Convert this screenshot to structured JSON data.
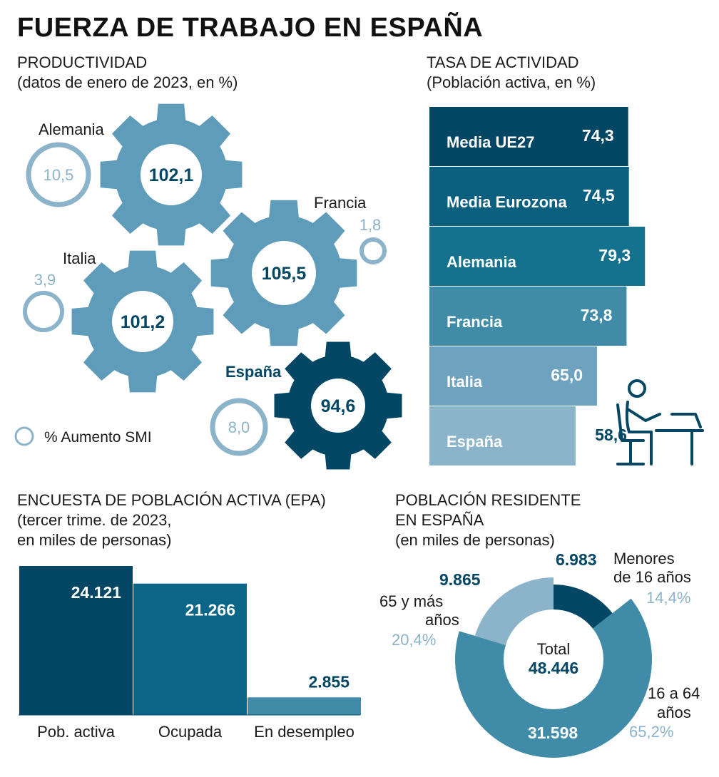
{
  "title": "FUERZA DE TRABAJO EN ESPAÑA",
  "colors": {
    "dark": "#034764",
    "mid": "#0b6c8a",
    "gear": "#5e9cba",
    "light": "#8bb3c9",
    "teal": "#3f8ba8"
  },
  "productividad": {
    "heading": "PRODUCTIVIDAD",
    "subheading": "(datos de enero de 2023, en %)",
    "legend": "% Aumento SMI"
  },
  "actividad": {
    "heading": "TASA DE ACTIVIDAD",
    "subheading": "(Población activa, en %)"
  },
  "epa": {
    "heading": "ENCUESTA DE POBLACIÓN ACTIVA (EPA)",
    "sub1": "(tercer trime. de 2023,",
    "sub2": "en miles de personas)"
  },
  "poblacion": {
    "heading1": "POBLACIÓN RESIDENTE",
    "heading2": "EN ESPAÑA",
    "subheading": "(en miles de personas)",
    "total_label": "Total",
    "total_value": "48.446"
  },
  "chart_data": [
    {
      "type": "other",
      "title": "PRODUCTIVIDAD",
      "items": [
        {
          "country": "Alemania",
          "productividad": 102.1,
          "productividad_label": "102,1",
          "smi": 10.5,
          "smi_label": "10,5"
        },
        {
          "country": "Francia",
          "productividad": 105.5,
          "productividad_label": "105,5",
          "smi": 1.8,
          "smi_label": "1,8"
        },
        {
          "country": "Italia",
          "productividad": 101.2,
          "productividad_label": "101,2",
          "smi": 3.9,
          "smi_label": "3,9"
        },
        {
          "country": "España",
          "productividad": 94.6,
          "productividad_label": "94,6",
          "smi": 8.0,
          "smi_label": "8,0"
        }
      ]
    },
    {
      "type": "bar",
      "orientation": "horizontal",
      "title": "TASA DE ACTIVIDAD",
      "categories": [
        "Media UE27",
        "Media Eurozona",
        "Alemania",
        "Francia",
        "Italia",
        "España"
      ],
      "values": [
        74.3,
        74.5,
        79.3,
        73.8,
        65.0,
        58.6
      ],
      "labels": [
        "74,3",
        "74,5",
        "79,3",
        "73,8",
        "65,0",
        "58,6"
      ]
    },
    {
      "type": "bar",
      "title": "ENCUESTA DE POBLACIÓN ACTIVA (EPA)",
      "categories": [
        "Pob. activa",
        "Ocupada",
        "En desempleo"
      ],
      "values": [
        24121,
        21266,
        2855
      ],
      "labels": [
        "24.121",
        "21.266",
        "2.855"
      ]
    },
    {
      "type": "pie",
      "title": "POBLACIÓN RESIDENTE EN ESPAÑA",
      "slices": [
        {
          "name1": "Menores",
          "name2": "de 16 años",
          "value": 6983,
          "value_label": "6.983",
          "pct": 14.4,
          "pct_label": "14,4%"
        },
        {
          "name1": "16 a 64",
          "name2": "años",
          "value": 31598,
          "value_label": "31.598",
          "pct": 65.2,
          "pct_label": "65,2%"
        },
        {
          "name1": "65 y más",
          "name2": "años",
          "value": 9865,
          "value_label": "9.865",
          "pct": 20.4,
          "pct_label": "20,4%"
        }
      ]
    }
  ]
}
